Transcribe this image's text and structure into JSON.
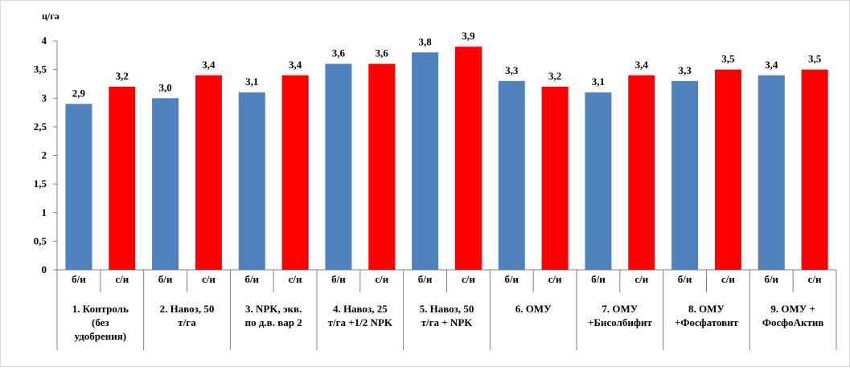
{
  "chart_data": {
    "type": "bar",
    "ylabel": "ц/га",
    "ylim": [
      0,
      4
    ],
    "yticks": [
      "0",
      "0,5",
      "1",
      "1,5",
      "2",
      "2,5",
      "3",
      "3,5",
      "4"
    ],
    "grid": false,
    "legend": "none",
    "colors": {
      "б/и": "#4F81BD",
      "с/и": "#FF0000"
    },
    "groups": [
      {
        "label_lines": [
          "1. Контроль",
          "(без",
          "удобрения)"
        ],
        "bars": [
          {
            "sub": "б/и",
            "value": 2.9,
            "label": "2,9"
          },
          {
            "sub": "с/и",
            "value": 3.2,
            "label": "3,2"
          }
        ]
      },
      {
        "label_lines": [
          "2. Навоз, 50",
          "т/га"
        ],
        "bars": [
          {
            "sub": "б/и",
            "value": 3.0,
            "label": "3,0"
          },
          {
            "sub": "с/и",
            "value": 3.4,
            "label": "3,4"
          }
        ]
      },
      {
        "label_lines": [
          "3. NPK, экв.",
          "по д.в. вар 2"
        ],
        "bars": [
          {
            "sub": "б/и",
            "value": 3.1,
            "label": "3,1"
          },
          {
            "sub": "с/и",
            "value": 3.4,
            "label": "3,4"
          }
        ]
      },
      {
        "label_lines": [
          "4. Навоз, 25",
          "т/га +1/2 NPK"
        ],
        "bars": [
          {
            "sub": "б/и",
            "value": 3.6,
            "label": "3,6"
          },
          {
            "sub": "с/и",
            "value": 3.6,
            "label": "3,6"
          }
        ]
      },
      {
        "label_lines": [
          "5. Навоз, 50",
          "т/га + NPK"
        ],
        "bars": [
          {
            "sub": "б/и",
            "value": 3.8,
            "label": "3,8"
          },
          {
            "sub": "с/и",
            "value": 3.9,
            "label": "3,9"
          }
        ]
      },
      {
        "label_lines": [
          "6. ОМУ"
        ],
        "bars": [
          {
            "sub": "б/и",
            "value": 3.3,
            "label": "3,3"
          },
          {
            "sub": "с/и",
            "value": 3.2,
            "label": "3,2"
          }
        ]
      },
      {
        "label_lines": [
          "7. ОМУ",
          "+Бисолбифит"
        ],
        "bars": [
          {
            "sub": "б/и",
            "value": 3.1,
            "label": "3,1"
          },
          {
            "sub": "с/и",
            "value": 3.4,
            "label": "3,4"
          }
        ]
      },
      {
        "label_lines": [
          "8. ОМУ",
          "+Фосфатовит"
        ],
        "bars": [
          {
            "sub": "б/и",
            "value": 3.3,
            "label": "3,3"
          },
          {
            "sub": "с/и",
            "value": 3.5,
            "label": "3,5"
          }
        ]
      },
      {
        "label_lines": [
          "9. ОМУ +",
          "ФосфоАктив"
        ],
        "bars": [
          {
            "sub": "б/и",
            "value": 3.4,
            "label": "3,4"
          },
          {
            "sub": "с/и",
            "value": 3.5,
            "label": "3,5"
          }
        ]
      }
    ]
  }
}
